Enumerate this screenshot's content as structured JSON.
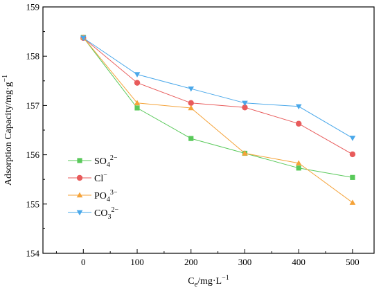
{
  "chart_data": {
    "type": "line",
    "title": "",
    "xlabel": {
      "base": "C",
      "sub": "e",
      "rest": "/mg·L",
      "sup": "−1"
    },
    "ylabel": {
      "text": "Adsorption Capacity/mg·g",
      "sup": "−1"
    },
    "x": [
      0,
      100,
      200,
      300,
      400,
      500
    ],
    "x_ticks": [
      "0",
      "100",
      "200",
      "300",
      "400",
      "500"
    ],
    "y_ticks": [
      "154",
      "155",
      "156",
      "157",
      "158",
      "159"
    ],
    "xlim": [
      -75,
      540
    ],
    "ylim": [
      154,
      159
    ],
    "grid": false,
    "legend_position": "lower-left",
    "series": [
      {
        "name": "SO42−",
        "legend": {
          "base": "SO",
          "sub": "4",
          "sup": "2−"
        },
        "marker": "square",
        "color": "#59c95a",
        "values": [
          158.38,
          156.95,
          156.33,
          156.03,
          155.73,
          155.54
        ]
      },
      {
        "name": "Cl−",
        "legend": {
          "base": "Cl",
          "sub": "",
          "sup": "−"
        },
        "marker": "circle",
        "color": "#e85b5b",
        "values": [
          158.37,
          157.46,
          157.05,
          156.96,
          156.63,
          156.01
        ]
      },
      {
        "name": "PO43−",
        "legend": {
          "base": "PO",
          "sub": "4",
          "sup": "3−"
        },
        "marker": "triangle-up",
        "color": "#f5a33a",
        "values": [
          158.38,
          157.05,
          156.95,
          156.03,
          155.83,
          155.03
        ]
      },
      {
        "name": "CO32−",
        "legend": {
          "base": "CO",
          "sub": "3",
          "sup": "2−"
        },
        "marker": "triangle-down",
        "color": "#4aa8ea",
        "values": [
          158.37,
          157.63,
          157.34,
          157.05,
          156.98,
          156.34
        ]
      }
    ]
  }
}
